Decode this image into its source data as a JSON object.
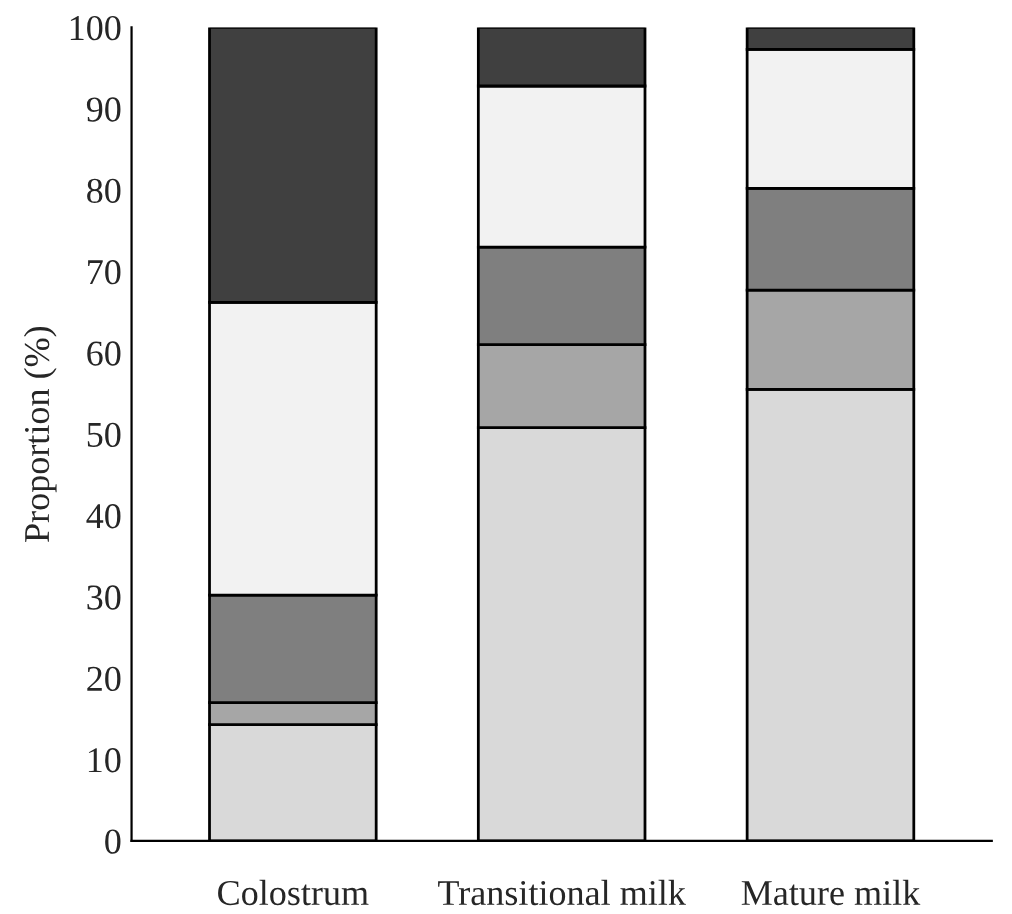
{
  "chart_data": {
    "type": "bar",
    "stacked": true,
    "ylabel": "Proportion (%)",
    "categories": [
      "Colostrum",
      "Transitional milk",
      "Mature milk"
    ],
    "series": [
      {
        "color": "#d9d9d9",
        "values": [
          14.3,
          50.8,
          55.5
        ]
      },
      {
        "color": "#a6a6a6",
        "values": [
          2.7,
          10.2,
          12.2
        ]
      },
      {
        "color": "#7f7f7f",
        "values": [
          13.2,
          12.0,
          12.5
        ]
      },
      {
        "color": "#f2f2f2",
        "values": [
          36.0,
          19.8,
          17.1
        ]
      },
      {
        "color": "#404040",
        "values": [
          33.8,
          7.2,
          2.7
        ]
      }
    ],
    "ylim": [
      0,
      100
    ],
    "yticks": [
      0,
      10,
      20,
      30,
      40,
      50,
      60,
      70,
      80,
      90,
      100
    ],
    "grid": false,
    "legend": false
  }
}
